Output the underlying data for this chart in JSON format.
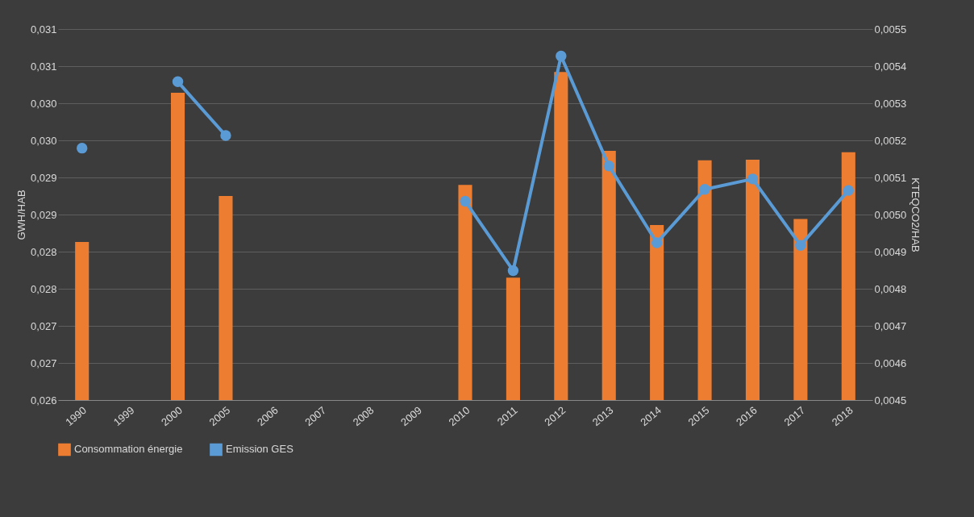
{
  "chart_data": {
    "type": "bar",
    "ylabel": "GWH/HAB",
    "y2label": "KTEQCO2/HAB",
    "categories": [
      "1990",
      "1999",
      "2000",
      "2005",
      "2006",
      "2007",
      "2008",
      "2009",
      "2010",
      "2011",
      "2012",
      "2013",
      "2014",
      "2015",
      "2016",
      "2017",
      "2018"
    ],
    "series": [
      {
        "name": "Consommation énergie",
        "color": "#ed7d31",
        "values": [
          0.02813,
          null,
          0.03014,
          0.02875,
          null,
          null,
          null,
          null,
          0.0289,
          0.02765,
          0.03042,
          0.02936,
          0.02836,
          0.02923,
          0.02924,
          0.02844,
          0.02934
        ]
      },
      {
        "name": "Emission GES",
        "type": "line",
        "axis": "y2",
        "color": "#5b9bd5",
        "values": [
          0.005179,
          null,
          0.005358,
          0.005213,
          null,
          null,
          null,
          null,
          0.005036,
          0.004849,
          0.005427,
          0.005131,
          0.004924,
          0.005068,
          0.005096,
          0.004917,
          0.005065
        ]
      }
    ],
    "ylim": [
      0.026,
      0.031
    ],
    "yticks": [
      {
        "value": 0.026,
        "label": "0,026"
      },
      {
        "value": 0.0265,
        "label": "0,027"
      },
      {
        "value": 0.027,
        "label": "0,027"
      },
      {
        "value": 0.0275,
        "label": "0,028"
      },
      {
        "value": 0.028,
        "label": "0,028"
      },
      {
        "value": 0.0285,
        "label": "0,029"
      },
      {
        "value": 0.029,
        "label": "0,029"
      },
      {
        "value": 0.0295,
        "label": "0,030"
      },
      {
        "value": 0.03,
        "label": "0,030"
      },
      {
        "value": 0.0305,
        "label": "0,031"
      },
      {
        "value": 0.031,
        "label": "0,031"
      }
    ],
    "y2lim": [
      0.0045,
      0.0055
    ],
    "y2ticks": [
      {
        "value": 0.0045,
        "label": "0,0045"
      },
      {
        "value": 0.0046,
        "label": "0,0046"
      },
      {
        "value": 0.0047,
        "label": "0,0047"
      },
      {
        "value": 0.0048,
        "label": "0,0048"
      },
      {
        "value": 0.0049,
        "label": "0,0049"
      },
      {
        "value": 0.005,
        "label": "0,0050"
      },
      {
        "value": 0.0051,
        "label": "0,0051"
      },
      {
        "value": 0.0052,
        "label": "0,0052"
      },
      {
        "value": 0.0053,
        "label": "0,0053"
      },
      {
        "value": 0.0054,
        "label": "0,0054"
      },
      {
        "value": 0.0055,
        "label": "0,0055"
      }
    ],
    "grid": true,
    "legend": "bottom",
    "marker": "circle"
  }
}
